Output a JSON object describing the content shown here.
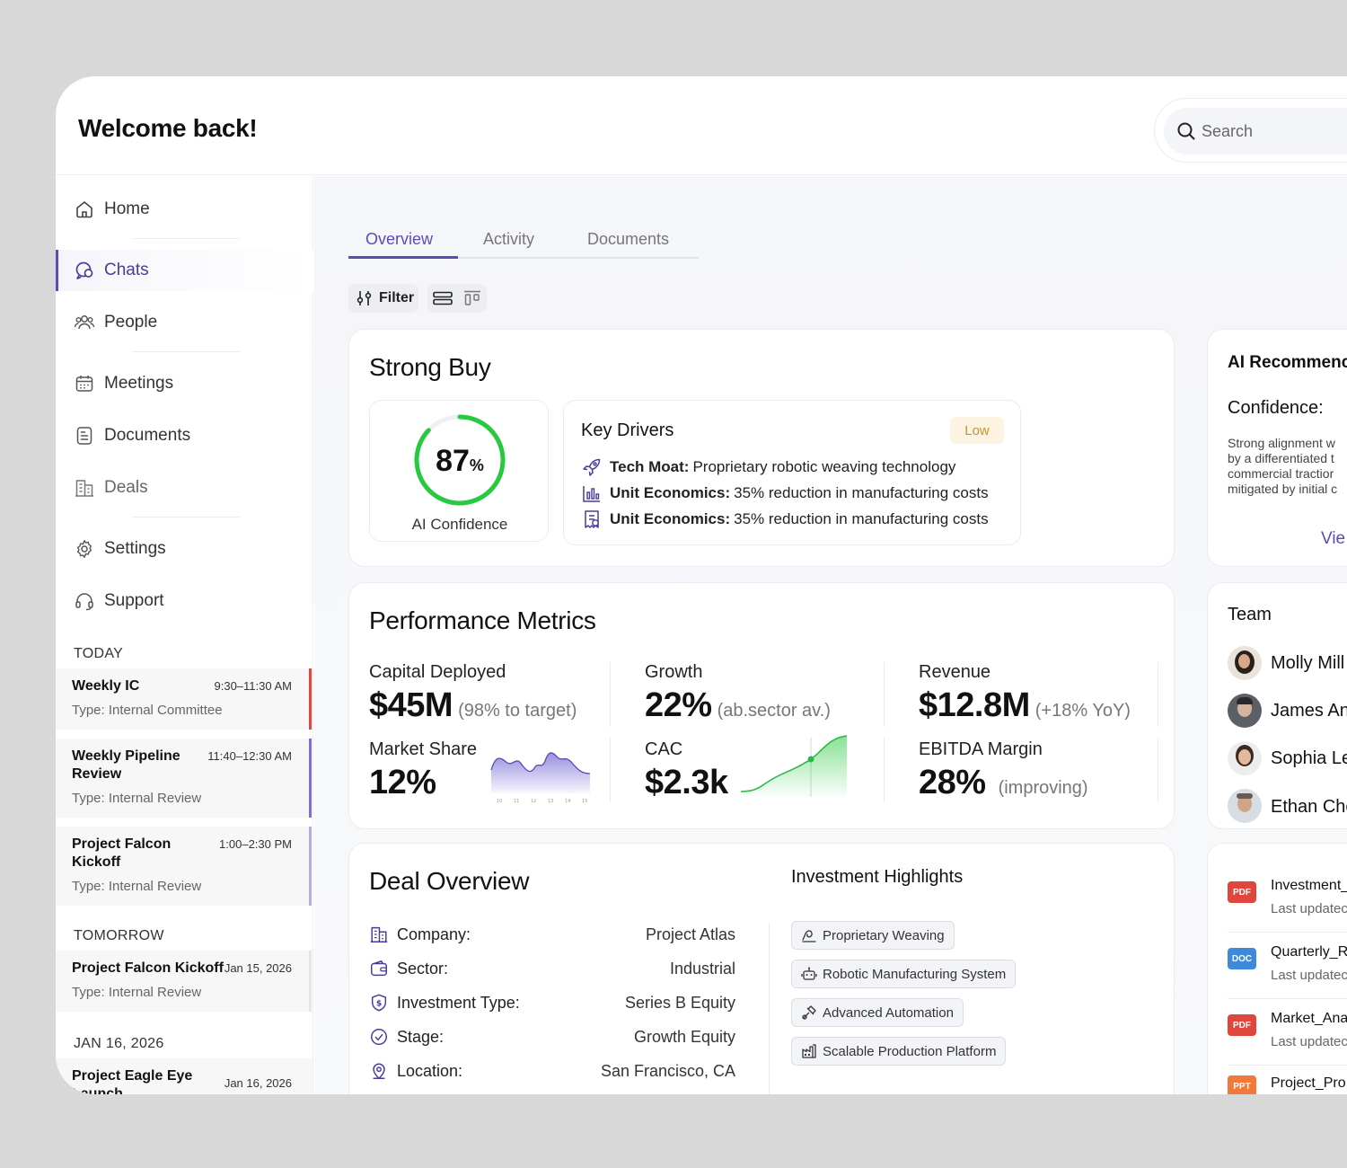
{
  "header": {
    "title": "Welcome back!",
    "search_placeholder": "Search"
  },
  "sidebar": {
    "items": [
      {
        "label": "Home",
        "icon": "home-icon"
      },
      {
        "label": "Chats",
        "icon": "chat-icon"
      },
      {
        "label": "People",
        "icon": "people-icon"
      },
      {
        "label": "Meetings",
        "icon": "calendar-icon"
      },
      {
        "label": "Documents",
        "icon": "document-icon"
      },
      {
        "label": "Deals",
        "icon": "building-icon"
      },
      {
        "label": "Settings",
        "icon": "gear-icon"
      },
      {
        "label": "Support",
        "icon": "headset-icon"
      }
    ],
    "active": "Chats",
    "schedule": {
      "today_label": "TODAY",
      "today": [
        {
          "title": "Weekly IC",
          "time": "9:30–11:30 AM",
          "type": "Type: Internal Committee",
          "accent": "#e0473c"
        },
        {
          "title": "Weekly Pipeline Review",
          "time": "11:40–12:30 AM",
          "type": "Type: Internal Review",
          "accent": "#7b6fd0"
        },
        {
          "title": "Project Falcon Kickoff",
          "time": "1:00–2:30 PM",
          "type": "Type: Internal Review",
          "accent": "#b4aedd"
        }
      ],
      "tomorrow_label": "TOMORROW",
      "tomorrow": [
        {
          "title": "Project Falcon Kickoff",
          "time": "Jan 15, 2026",
          "type": "Type: Internal Review"
        }
      ],
      "later_label": "JAN 16, 2026",
      "later": [
        {
          "title": "Project Eagle Eye Launch",
          "time": "Jan 16, 2026"
        }
      ]
    }
  },
  "tabs": [
    "Overview",
    "Activity",
    "Documents"
  ],
  "active_tab": "Overview",
  "toolbar": {
    "filter_label": "Filter"
  },
  "rating": {
    "title": "Strong Buy",
    "confidence_value": "87",
    "confidence_unit": "%",
    "confidence_fraction": 0.87,
    "confidence_label": "AI Confidence",
    "key_drivers": {
      "title": "Key Drivers",
      "badge": "Low",
      "items": [
        {
          "icon": "rocket-icon",
          "label": "Tech Moat:",
          "text": "Proprietary robotic weaving technology"
        },
        {
          "icon": "bar-chart-icon",
          "label": "Unit Economics:",
          "text": "35% reduction in manufacturing costs"
        },
        {
          "icon": "receipt-icon",
          "label": "Unit Economics:",
          "text": "35% reduction in manufacturing costs"
        }
      ]
    }
  },
  "performance": {
    "title": "Performance Metrics",
    "metrics": [
      {
        "label": "Capital Deployed",
        "value": "$45M",
        "sub": "(98% to target)"
      },
      {
        "label": "Growth",
        "value": "22%",
        "sub": "(ab.sector av.)"
      },
      {
        "label": "Revenue",
        "value": "$12.8M",
        "sub": "(+18% YoY)"
      },
      {
        "label": "Market Share",
        "value": "12%",
        "sub": ""
      },
      {
        "label": "CAC",
        "value": "$2.3k",
        "sub": ""
      },
      {
        "label": "EBITDA Margin",
        "value": "28%",
        "sub": "(improving)"
      }
    ],
    "sparkline_ticks": [
      "10",
      "11",
      "12",
      "13",
      "14",
      "15"
    ]
  },
  "deal": {
    "title": "Deal Overview",
    "rows": [
      {
        "icon": "building-icon",
        "label": "Company:",
        "value": "Project Atlas"
      },
      {
        "icon": "wallet-icon",
        "label": "Sector:",
        "value": "Industrial"
      },
      {
        "icon": "shield-dollar-icon",
        "label": "Investment Type:",
        "value": "Series B Equity"
      },
      {
        "icon": "clock-check-icon",
        "label": "Stage:",
        "value": "Growth Equity"
      },
      {
        "icon": "location-icon",
        "label": "Location:",
        "value": "San Francisco, CA"
      }
    ],
    "highlights_title": "Investment Highlights",
    "highlights": [
      {
        "icon": "weave-icon",
        "label": "Proprietary Weaving"
      },
      {
        "icon": "robot-icon",
        "label": "Robotic Manufacturing System"
      },
      {
        "icon": "automation-icon",
        "label": "Advanced Automation"
      },
      {
        "icon": "factory-icon",
        "label": "Scalable Production Platform"
      }
    ]
  },
  "ai_rec": {
    "title": "AI Recommenc",
    "confidence_label": "Confidence:",
    "lines": [
      "Strong alignment w",
      "by a differentiated t",
      "commercial tractior",
      "mitigated by initial c"
    ],
    "view_link": "Vie"
  },
  "team": {
    "title": "Team",
    "members": [
      "Molly Mill",
      "James An",
      "Sophia Le",
      "Ethan Che"
    ]
  },
  "documents": [
    {
      "type": "PDF",
      "name": "Investment_",
      "sub": "Last updatec",
      "color": "#e0473c"
    },
    {
      "type": "DOC",
      "name": "Quarterly_R",
      "sub": "Last updatec",
      "color": "#3f8ad8"
    },
    {
      "type": "PDF",
      "name": "Market_Ana",
      "sub": "Last updatec",
      "color": "#e0473c"
    },
    {
      "type": "PPT",
      "name": "Project_Pro",
      "sub": "",
      "color": "#f07a3c"
    }
  ]
}
